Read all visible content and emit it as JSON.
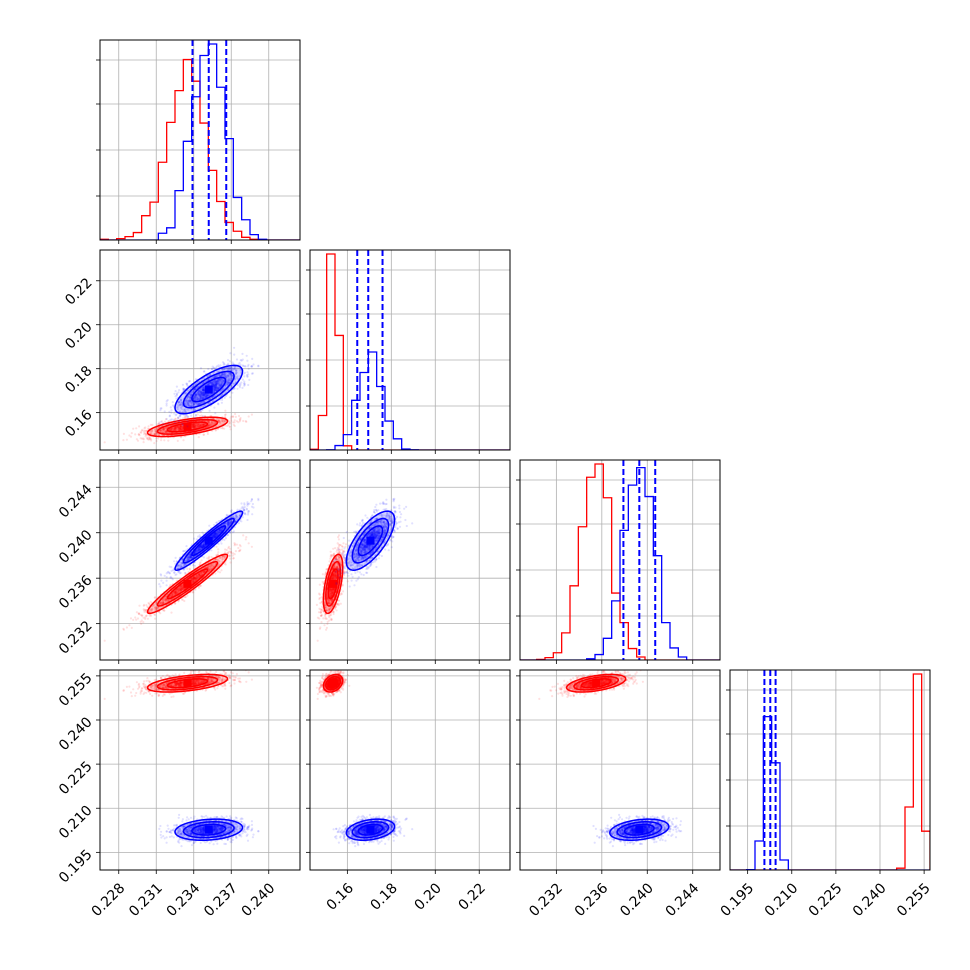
{
  "colors": {
    "red": "#ff0000",
    "blue": "#0000ff",
    "grid": "#b0b0b0"
  },
  "chart_data": {
    "type": "corner",
    "grid": true,
    "legend": "none",
    "parameters": [
      {
        "range": [
          0.2265,
          0.2425
        ],
        "ticks": [
          0.228,
          0.231,
          0.234,
          0.237,
          0.24
        ],
        "tick_labels": [
          "0.228",
          "0.231",
          "0.234",
          "0.237",
          "0.240"
        ]
      },
      {
        "range": [
          0.143,
          0.234
        ],
        "ticks": [
          0.16,
          0.18,
          0.2,
          0.22
        ],
        "tick_labels": [
          "0.16",
          "0.18",
          "0.20",
          "0.22"
        ]
      },
      {
        "range": [
          0.2288,
          0.2464
        ],
        "ticks": [
          0.232,
          0.236,
          0.24,
          0.244
        ],
        "tick_labels": [
          "0.232",
          "0.236",
          "0.240",
          "0.244"
        ]
      },
      {
        "range": [
          0.189,
          0.257
        ],
        "ticks": [
          0.195,
          0.21,
          0.225,
          0.24,
          0.255
        ],
        "tick_labels": [
          "0.195",
          "0.210",
          "0.225",
          "0.240",
          "0.255"
        ]
      }
    ],
    "series": [
      {
        "color": "#ff0000",
        "quantile_lines": false,
        "stats": [
          {
            "mean": 0.2335,
            "sd": 0.0016
          },
          {
            "mean": 0.1535,
            "sd": 0.0022
          },
          {
            "mean": 0.2355,
            "sd": 0.0013
          },
          {
            "mean": 0.2525,
            "sd": 0.0015
          }
        ],
        "correlations": {
          "0-1": 0.6,
          "0-2": 0.95,
          "0-3": 0.5,
          "1-2": 0.55,
          "1-3": 0.3,
          "2-3": 0.5
        }
      },
      {
        "color": "#0000ff",
        "quantile_lines": true,
        "stats": [
          {
            "mean": 0.2352,
            "sd": 0.00135
          },
          {
            "mean": 0.1705,
            "sd": 0.0055
          },
          {
            "mean": 0.2393,
            "sd": 0.0013
          },
          {
            "mean": 0.2027,
            "sd": 0.0018
          }
        ],
        "correlations": {
          "0-1": 0.75,
          "0-2": 0.95,
          "0-3": 0.2,
          "1-2": 0.7,
          "1-3": 0.3,
          "2-3": 0.3
        },
        "quantiles": [
          [
            0.2339,
            0.2352,
            0.2366
          ],
          [
            0.1645,
            0.1695,
            0.176
          ],
          [
            0.2379,
            0.2393,
            0.2407
          ],
          [
            0.2007,
            0.2027,
            0.2045
          ]
        ]
      }
    ]
  }
}
